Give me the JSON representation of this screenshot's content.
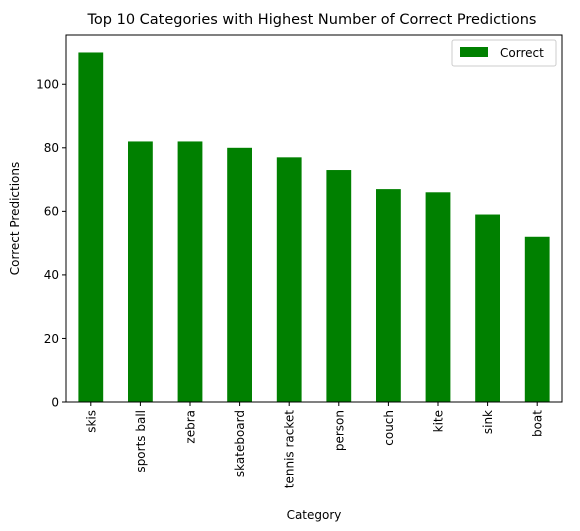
{
  "chart_data": {
    "type": "bar",
    "title": "Top 10 Categories with Highest Number of Correct Predictions",
    "xlabel": "Category",
    "ylabel": "Correct Predictions",
    "categories": [
      "skis",
      "sports ball",
      "zebra",
      "skateboard",
      "tennis racket",
      "person",
      "couch",
      "kite",
      "sink",
      "boat"
    ],
    "series": [
      {
        "name": "Correct",
        "values": [
          110,
          82,
          82,
          80,
          77,
          73,
          67,
          66,
          59,
          52
        ],
        "color": "#008000"
      }
    ],
    "ylim": [
      0,
      115.5
    ],
    "yticks": [
      0,
      20,
      40,
      60,
      80,
      100
    ],
    "grid": false,
    "legend_position": "top-right"
  }
}
